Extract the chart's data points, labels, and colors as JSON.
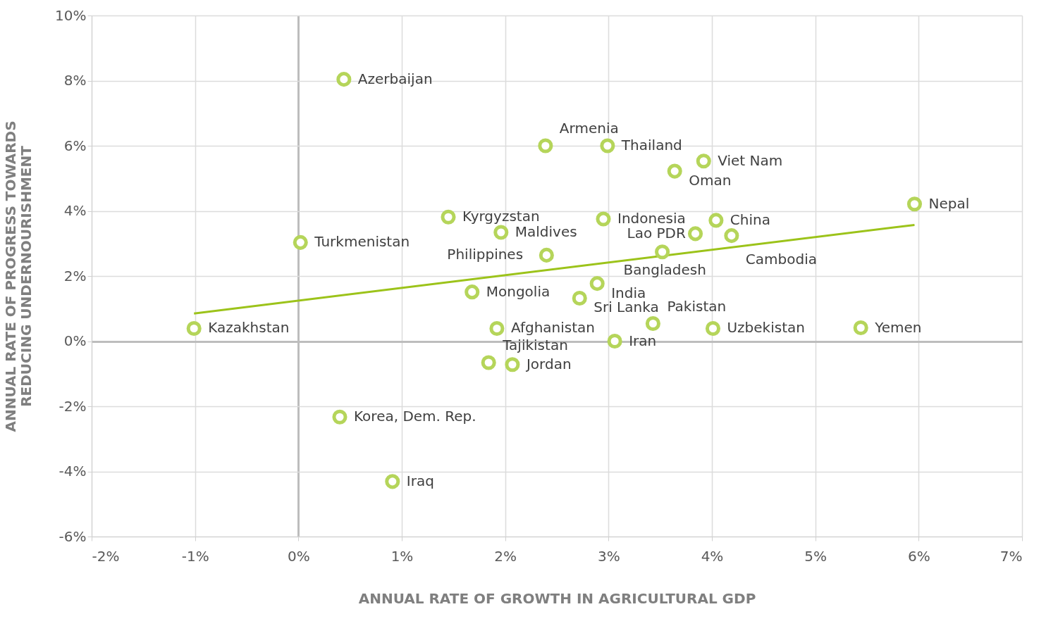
{
  "chart_data": {
    "type": "scatter",
    "xlabel": "ANNUAL RATE OF GROWTH IN AGRICULTURAL GDP",
    "ylabel": "ANNUAL RATE OF PROGRESS TOWARDS REDUCING UNDERNOURISHMENT",
    "xlim": [
      -2,
      7
    ],
    "xticks": [
      {
        "value": -2,
        "label": "-2%"
      },
      {
        "value": -1,
        "label": "-1%"
      },
      {
        "value": 0,
        "label": "0%"
      },
      {
        "value": 1,
        "label": "1%"
      },
      {
        "value": 2,
        "label": "2%"
      },
      {
        "value": 3,
        "label": "3%"
      },
      {
        "value": 4,
        "label": "4%"
      },
      {
        "value": 5,
        "label": "5%"
      },
      {
        "value": 6,
        "label": "6%"
      },
      {
        "value": 7,
        "label": "7%"
      }
    ],
    "ylim": [
      -6,
      10
    ],
    "yticks": [
      {
        "value": -6,
        "label": "-6%"
      },
      {
        "value": -4,
        "label": "-4%"
      },
      {
        "value": -2,
        "label": "-2%"
      },
      {
        "value": 0,
        "label": "0%"
      },
      {
        "value": 2,
        "label": "2%"
      },
      {
        "value": 4,
        "label": "4%"
      },
      {
        "value": 6,
        "label": "6%"
      },
      {
        "value": 8,
        "label": "8%"
      },
      {
        "value": 10,
        "label": "10%"
      }
    ],
    "grid": true,
    "series": [
      {
        "type": "scatter",
        "marker": "circle",
        "color": "#b5d55a",
        "x": [
          0.44,
          2.39,
          2.99,
          3.92,
          3.64,
          5.96,
          1.45,
          2.95,
          4.04,
          1.96,
          3.84,
          4.19,
          0.02,
          2.4,
          3.52,
          2.89,
          1.68,
          2.72,
          -1.01,
          1.92,
          3.43,
          4.01,
          5.44,
          3.06,
          1.84,
          2.07,
          0.4,
          0.91
        ],
        "values": [
          8.04,
          6.0,
          6.0,
          5.53,
          5.22,
          4.21,
          3.81,
          3.75,
          3.71,
          3.34,
          3.3,
          3.24,
          3.03,
          2.64,
          2.74,
          1.77,
          1.51,
          1.32,
          0.39,
          0.39,
          0.54,
          0.39,
          0.41,
          0.0,
          -0.66,
          -0.72,
          -2.33,
          -4.31
        ]
      },
      {
        "type": "line",
        "color": "#9cc31a",
        "x": [
          -1.01,
          5.96
        ],
        "values": [
          0.85,
          3.57
        ]
      }
    ],
    "annotations": [
      {
        "text": "Azerbaijan",
        "x": 0.44,
        "y": 8.04
      },
      {
        "text": "Armenia",
        "x": 2.39,
        "y": 6.0
      },
      {
        "text": "Thailand",
        "x": 2.99,
        "y": 6.0
      },
      {
        "text": "Viet Nam",
        "x": 3.92,
        "y": 5.53
      },
      {
        "text": "Oman",
        "x": 3.64,
        "y": 5.22
      },
      {
        "text": "Nepal",
        "x": 5.96,
        "y": 4.21
      },
      {
        "text": "Kyrgyzstan",
        "x": 1.45,
        "y": 3.81
      },
      {
        "text": "Indonesia",
        "x": 2.95,
        "y": 3.75
      },
      {
        "text": "China",
        "x": 4.04,
        "y": 3.71
      },
      {
        "text": "Maldives",
        "x": 1.96,
        "y": 3.34
      },
      {
        "text": "Lao PDR",
        "x": 3.84,
        "y": 3.3
      },
      {
        "text": "Cambodia",
        "x": 4.19,
        "y": 3.24
      },
      {
        "text": "Turkmenistan",
        "x": 0.02,
        "y": 3.03
      },
      {
        "text": "Philippines",
        "x": 2.4,
        "y": 2.64
      },
      {
        "text": "Bangladesh",
        "x": 3.52,
        "y": 2.74
      },
      {
        "text": "India",
        "x": 2.89,
        "y": 1.77
      },
      {
        "text": "Mongolia",
        "x": 1.68,
        "y": 1.51
      },
      {
        "text": "Sri Lanka",
        "x": 2.72,
        "y": 1.32
      },
      {
        "text": "Kazakhstan",
        "x": -1.01,
        "y": 0.39
      },
      {
        "text": "Afghanistan",
        "x": 1.92,
        "y": 0.39
      },
      {
        "text": "Pakistan",
        "x": 3.43,
        "y": 0.54
      },
      {
        "text": "Uzbekistan",
        "x": 4.01,
        "y": 0.39
      },
      {
        "text": "Yemen",
        "x": 5.44,
        "y": 0.41
      },
      {
        "text": "Iran",
        "x": 3.06,
        "y": 0.0
      },
      {
        "text": "Tajikistan",
        "x": 1.84,
        "y": -0.66
      },
      {
        "text": "Jordan",
        "x": 2.07,
        "y": -0.72
      },
      {
        "text": "Korea, Dem. Rep.",
        "x": 0.4,
        "y": -2.33
      },
      {
        "text": "Iraq",
        "x": 0.91,
        "y": -4.31
      }
    ]
  }
}
